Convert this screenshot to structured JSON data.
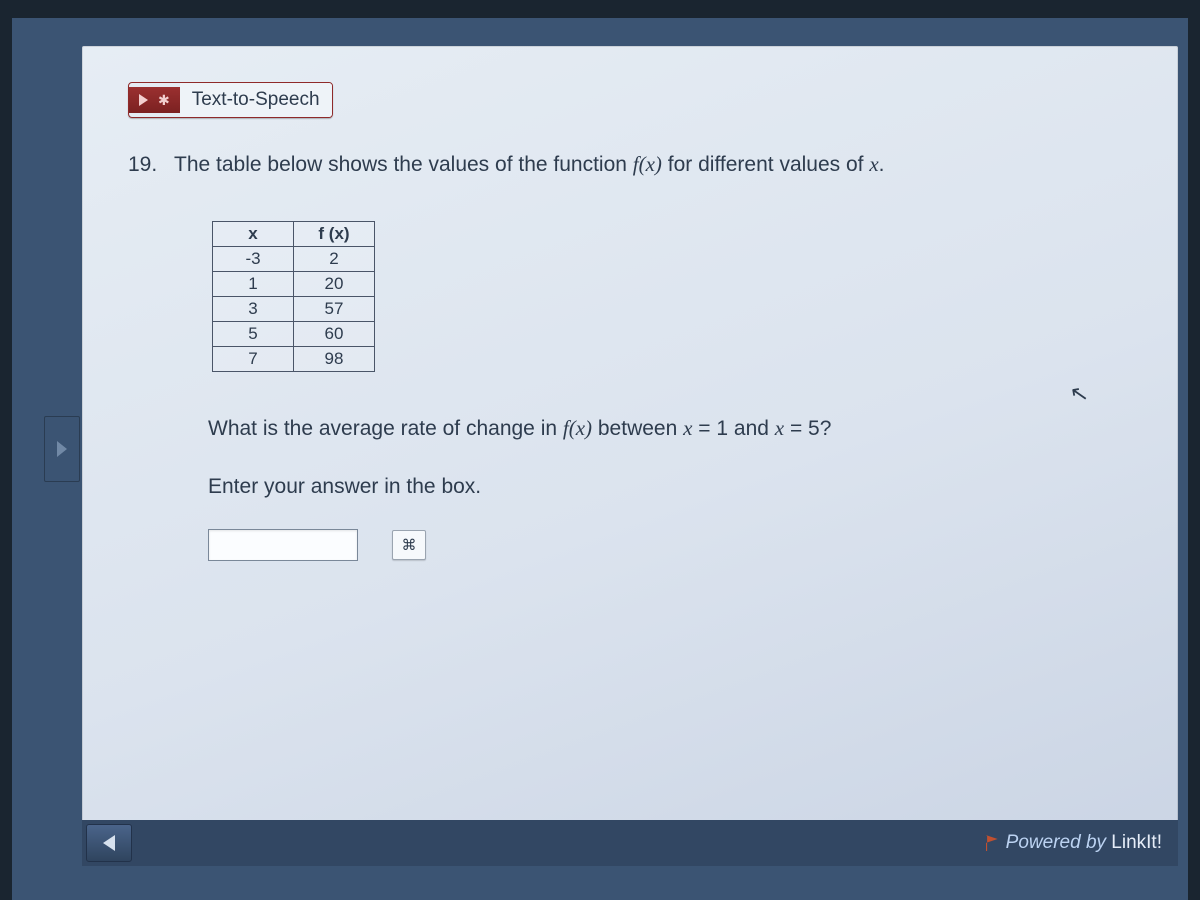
{
  "tts": {
    "label": "Text-to-Speech"
  },
  "question": {
    "number": "19.",
    "intro_before": "The table below shows the values of the function ",
    "intro_fx": "f(x)",
    "intro_after": " for different values of ",
    "intro_var": "x",
    "intro_period": "."
  },
  "table": {
    "header_x": "x",
    "header_fx": "f (x)",
    "rows": [
      {
        "x": "-3",
        "fx": "2"
      },
      {
        "x": "1",
        "fx": "20"
      },
      {
        "x": "3",
        "fx": "57"
      },
      {
        "x": "5",
        "fx": "60"
      },
      {
        "x": "7",
        "fx": "98"
      }
    ]
  },
  "subquestion": {
    "before": "What is the average rate of change in ",
    "fx": "f(x)",
    "between": " between ",
    "x1_label": "x",
    "eq1": " = 1 and ",
    "x2_label": "x",
    "eq2": " = 5?"
  },
  "instruction": "Enter your answer in the box.",
  "answer_value": "",
  "keypad_glyph": "⌘",
  "footer": {
    "powered_prefix": "Powered by ",
    "brand": "LinkIt!"
  },
  "colors": {
    "page_bg": "#e6edf4",
    "outer_bg": "#3b5473",
    "text": "#2e3c4e",
    "tts_red": "#8a2626",
    "bottom_bar": "#324763"
  }
}
